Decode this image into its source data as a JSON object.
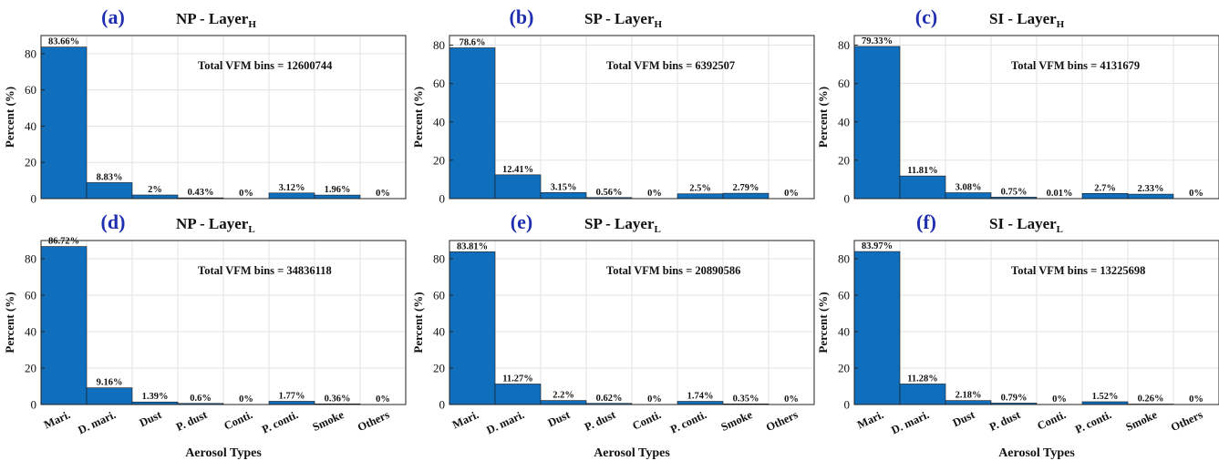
{
  "figure": {
    "bar_color": "#0f6fbd",
    "bar_edge_color": "#1a1a1a",
    "panel_letter_color": "#1f2fb0",
    "grid_color": "#e3e3e3"
  },
  "chart_data": [
    {
      "type": "bar",
      "panel": "(a)",
      "title": "NP - Layer",
      "title_subscript": "H",
      "annotation": "Total VFM bins = 12600744",
      "categories": [
        "Mari.",
        "D. mari.",
        "Dust",
        "P. dust",
        "Conti.",
        "P. conti.",
        "Smoke",
        "Others"
      ],
      "values": [
        83.66,
        8.83,
        2,
        0.43,
        0,
        3.12,
        1.96,
        0
      ],
      "value_labels": [
        "83.66%",
        "8.83%",
        "2%",
        "0.43%",
        "0%",
        "3.12%",
        "1.96%",
        "0%"
      ],
      "ylabel": "Percent (%)",
      "xlabel": "",
      "ylim": [
        0,
        90
      ],
      "yticks": [
        0,
        20,
        40,
        60,
        80
      ],
      "grid": true,
      "show_xticklabels": false
    },
    {
      "type": "bar",
      "panel": "(b)",
      "title": "SP - Layer",
      "title_subscript": "H",
      "annotation": "Total VFM bins = 6392507",
      "categories": [
        "Mari.",
        "D. mari.",
        "Dust",
        "P. dust",
        "Conti.",
        "P. conti.",
        "Smoke",
        "Others"
      ],
      "values": [
        78.6,
        12.41,
        3.15,
        0.56,
        0,
        2.5,
        2.79,
        0
      ],
      "value_labels": [
        "78.6%",
        "12.41%",
        "3.15%",
        "0.56%",
        "0%",
        "2.5%",
        "2.79%",
        "0%"
      ],
      "ylabel": "Percent (%)",
      "xlabel": "",
      "ylim": [
        0,
        85
      ],
      "yticks": [
        0,
        20,
        40,
        60,
        80
      ],
      "grid": true,
      "show_xticklabels": false
    },
    {
      "type": "bar",
      "panel": "(c)",
      "title": "SI - Layer",
      "title_subscript": "H",
      "annotation": "Total VFM bins = 4131679",
      "categories": [
        "Mari.",
        "D. mari.",
        "Dust",
        "P. dust",
        "Conti.",
        "P. conti.",
        "Smoke",
        "Others"
      ],
      "values": [
        79.33,
        11.81,
        3.08,
        0.75,
        0.01,
        2.7,
        2.33,
        0
      ],
      "value_labels": [
        "79.33%",
        "11.81%",
        "3.08%",
        "0.75%",
        "0.01%",
        "2.7%",
        "2.33%",
        "0%"
      ],
      "ylabel": "Percent (%)",
      "xlabel": "",
      "ylim": [
        0,
        85
      ],
      "yticks": [
        0,
        20,
        40,
        60,
        80
      ],
      "grid": true,
      "show_xticklabels": false
    },
    {
      "type": "bar",
      "panel": "(d)",
      "title": "NP - Layer",
      "title_subscript": "L",
      "annotation": "Total VFM bins = 34836118",
      "categories": [
        "Mari.",
        "D. mari.",
        "Dust",
        "P. dust",
        "Conti.",
        "P. conti.",
        "Smoke",
        "Others"
      ],
      "values": [
        86.72,
        9.16,
        1.39,
        0.6,
        0,
        1.77,
        0.36,
        0
      ],
      "value_labels": [
        "86.72%",
        "9.16%",
        "1.39%",
        "0.6%",
        "0%",
        "1.77%",
        "0.36%",
        "0%"
      ],
      "ylabel": "Percent (%)",
      "xlabel": "Aerosol Types",
      "ylim": [
        0,
        90
      ],
      "yticks": [
        0,
        20,
        40,
        60,
        80
      ],
      "grid": true,
      "show_xticklabels": true
    },
    {
      "type": "bar",
      "panel": "(e)",
      "title": "SP - Layer",
      "title_subscript": "L",
      "annotation": "Total VFM bins = 20890586",
      "categories": [
        "Mari.",
        "D. mari.",
        "Dust",
        "P. dust",
        "Conti.",
        "P. conti.",
        "Smoke",
        "Others"
      ],
      "values": [
        83.81,
        11.27,
        2.2,
        0.62,
        0,
        1.74,
        0.35,
        0
      ],
      "value_labels": [
        "83.81%",
        "11.27%",
        "2.2%",
        "0.62%",
        "0%",
        "1.74%",
        "0.35%",
        "0%"
      ],
      "ylabel": "Percent (%)",
      "xlabel": "Aerosol Types",
      "ylim": [
        0,
        90
      ],
      "yticks": [
        0,
        20,
        40,
        60,
        80
      ],
      "grid": true,
      "show_xticklabels": true
    },
    {
      "type": "bar",
      "panel": "(f)",
      "title": "SI - Layer",
      "title_subscript": "L",
      "annotation": "Total VFM bins = 13225698",
      "categories": [
        "Mari.",
        "D. mari.",
        "Dust",
        "P. dust",
        "Conti.",
        "P. conti.",
        "Smoke",
        "Others"
      ],
      "values": [
        83.97,
        11.28,
        2.18,
        0.79,
        0,
        1.52,
        0.26,
        0
      ],
      "value_labels": [
        "83.97%",
        "11.28%",
        "2.18%",
        "0.79%",
        "0%",
        "1.52%",
        "0.26%",
        "0%"
      ],
      "ylabel": "Percent (%)",
      "xlabel": "Aerosol Types",
      "ylim": [
        0,
        90
      ],
      "yticks": [
        0,
        20,
        40,
        60,
        80
      ],
      "grid": true,
      "show_xticklabels": true
    }
  ]
}
